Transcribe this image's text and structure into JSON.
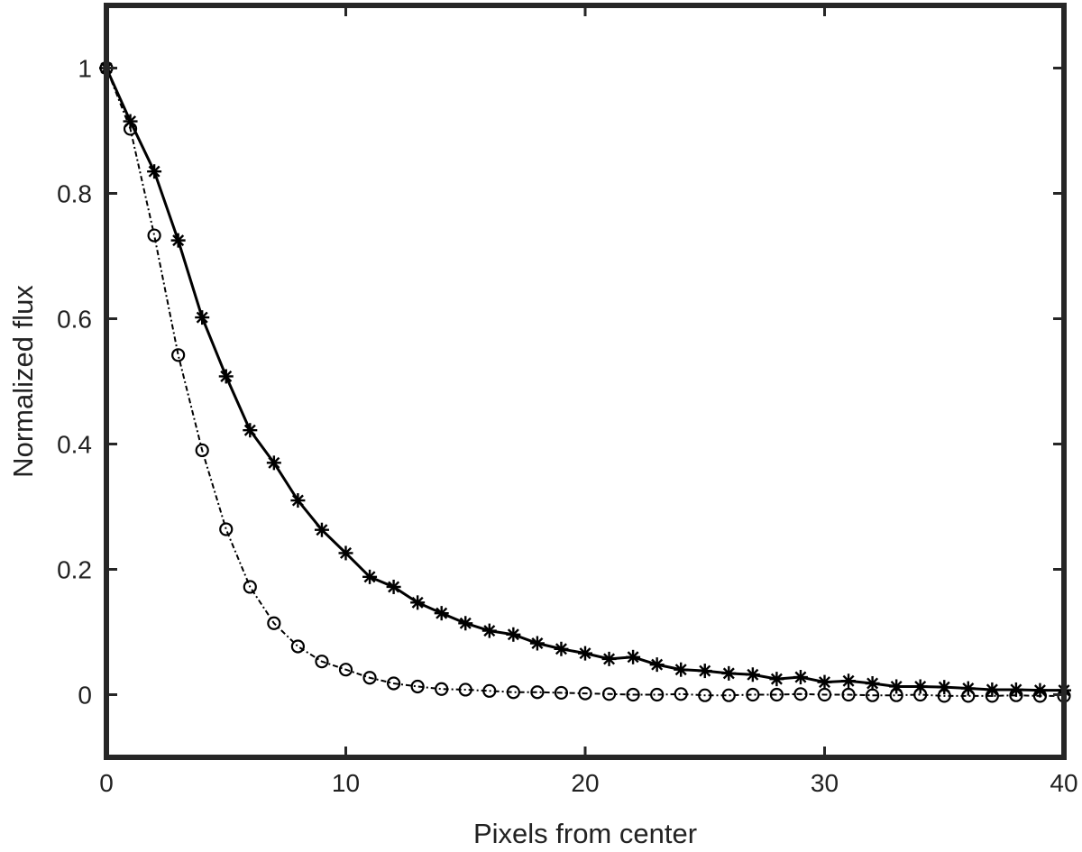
{
  "chart_data": {
    "type": "line",
    "title": "",
    "xlabel": "Pixels from center",
    "ylabel": "Normalized flux",
    "xlim": [
      0,
      40
    ],
    "ylim": [
      -0.1,
      1.1
    ],
    "xticks": [
      0,
      10,
      20,
      30,
      40
    ],
    "yticks": [
      0,
      0.2,
      0.4,
      0.6,
      0.8,
      1
    ],
    "x_tick_labels": [
      "0",
      "10",
      "20",
      "30",
      "40"
    ],
    "y_tick_labels": [
      "0",
      "0.2",
      "0.4",
      "0.6",
      "0.8",
      "1"
    ],
    "grid": false,
    "legend": "none",
    "colors": {
      "line": "#000000",
      "axis": "#262626",
      "text": "#222222"
    },
    "x": [
      0,
      1,
      2,
      3,
      4,
      5,
      6,
      7,
      8,
      9,
      10,
      11,
      12,
      13,
      14,
      15,
      16,
      17,
      18,
      19,
      20,
      21,
      22,
      23,
      24,
      25,
      26,
      27,
      28,
      29,
      30,
      31,
      32,
      33,
      34,
      35,
      36,
      37,
      38,
      39,
      40
    ],
    "series": [
      {
        "marker": "asterisk",
        "line_style": "solid",
        "values": [
          1.0,
          0.915,
          0.835,
          0.725,
          0.602,
          0.508,
          0.422,
          0.37,
          0.31,
          0.263,
          0.226,
          0.188,
          0.172,
          0.147,
          0.13,
          0.114,
          0.102,
          0.096,
          0.082,
          0.073,
          0.066,
          0.057,
          0.06,
          0.048,
          0.04,
          0.038,
          0.034,
          0.032,
          0.025,
          0.028,
          0.02,
          0.022,
          0.018,
          0.013,
          0.013,
          0.012,
          0.01,
          0.008,
          0.008,
          0.007,
          0.007
        ]
      },
      {
        "marker": "circle",
        "line_style": "dashdot",
        "values": [
          1.0,
          0.903,
          0.733,
          0.542,
          0.39,
          0.264,
          0.172,
          0.114,
          0.077,
          0.053,
          0.04,
          0.027,
          0.018,
          0.013,
          0.009,
          0.008,
          0.006,
          0.004,
          0.004,
          0.003,
          0.002,
          0.001,
          0.0,
          0.0,
          0.001,
          -0.001,
          -0.001,
          0.0,
          0.0,
          0.001,
          0.0,
          0.0,
          -0.001,
          -0.001,
          0.0,
          -0.002,
          -0.002,
          -0.002,
          -0.001,
          -0.002,
          -0.002
        ]
      }
    ]
  }
}
